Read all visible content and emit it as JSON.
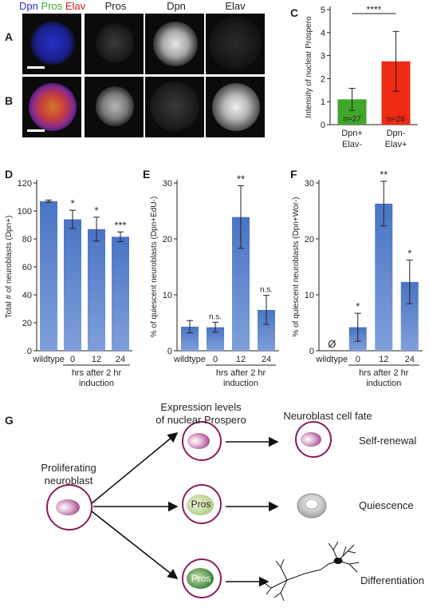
{
  "panels": {
    "A": "A",
    "B": "B",
    "C": "C",
    "D": "D",
    "E": "E",
    "F": "F",
    "G": "G"
  },
  "image_labels": {
    "dpn": "Dpn",
    "pros": "Pros",
    "elav": "Elav"
  },
  "colors": {
    "dpn": "#2b2bd6",
    "pros": "#3aa832",
    "elav": "#d81b1b",
    "bar_blue": "#4a74c4",
    "bar_green": "#3fa62a",
    "bar_red": "#ee2a14",
    "cell_border": "#8c1c5a"
  },
  "chart_data": [
    {
      "id": "C",
      "type": "bar",
      "categories": [
        [
          "Dpn+",
          "Elav-"
        ],
        [
          "Dpn-",
          "Elav+"
        ]
      ],
      "values": [
        1.1,
        2.75
      ],
      "errors": [
        0.48,
        1.3
      ],
      "bar_labels": [
        "n=27",
        "n=28"
      ],
      "bar_colors": [
        "#3fa62a",
        "#ee2a14"
      ],
      "ylabel": "Intensity of nuclear Prospero",
      "ylim": [
        0,
        5
      ],
      "yticks": [
        0,
        1,
        2,
        3,
        4,
        5
      ],
      "significance": "****"
    },
    {
      "id": "D",
      "type": "bar",
      "categories": [
        "wildtype",
        "0",
        "12",
        "24"
      ],
      "values": [
        107,
        94,
        87,
        81.5
      ],
      "errors": [
        0.8,
        6.5,
        8.5,
        3.5
      ],
      "sig": [
        "",
        "*",
        "*",
        "***"
      ],
      "ylabel": "Total # of neuroblasts (Dpn+)",
      "ylim": [
        0,
        120
      ],
      "yticks": [
        0,
        20,
        40,
        60,
        80,
        100,
        120
      ],
      "xgroup_label": [
        "hrs after 2 hr",
        "induction"
      ]
    },
    {
      "id": "E",
      "type": "bar",
      "categories": [
        "wildtype",
        "0",
        "12",
        "24"
      ],
      "values": [
        4.3,
        4.2,
        23.9,
        7.3
      ],
      "errors": [
        1.1,
        0.9,
        5.6,
        2.6
      ],
      "sig": [
        "",
        "n.s.",
        "**",
        "n.s."
      ],
      "ylabel": "% of quiescent neuroblasts (Dpn+EdU-)",
      "ylim": [
        0,
        30
      ],
      "yticks": [
        0,
        10,
        20,
        30
      ],
      "xgroup_label": [
        "hrs after 2 hr",
        "induction"
      ]
    },
    {
      "id": "F",
      "type": "bar",
      "categories": [
        "wildtype",
        "0",
        "12",
        "24"
      ],
      "values": [
        0,
        4.2,
        26.3,
        12.3
      ],
      "errors": [
        0,
        2.5,
        4.0,
        3.9
      ],
      "sig": [
        "",
        "*",
        "**",
        "*"
      ],
      "zero_marker": "Ø",
      "ylabel": "% of quiescent neuroblasts (Dpn+Wor-)",
      "ylim": [
        0,
        30
      ],
      "yticks": [
        0,
        10,
        20,
        30
      ],
      "xgroup_label": [
        "hrs after 2 hr",
        "induction"
      ]
    }
  ],
  "diagram": {
    "prolif_label": [
      "Proliferating",
      "neuroblast"
    ],
    "middle_header": [
      "Expression levels",
      "of nuclear Prospero"
    ],
    "right_header": "Neuroblast cell fate",
    "pros": "Pros",
    "fates": [
      "Self-renewal",
      "Quiescence",
      "Differentiation"
    ]
  }
}
